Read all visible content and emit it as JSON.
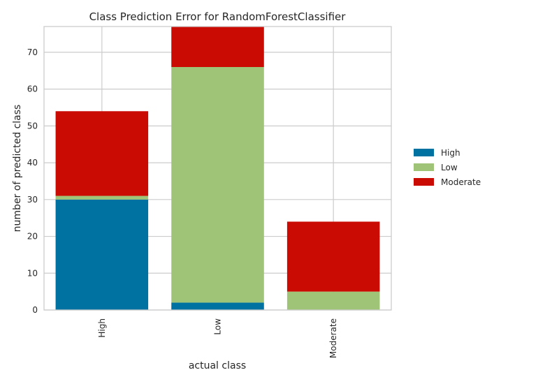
{
  "chart_data": {
    "type": "bar",
    "stacked": true,
    "title": "Class Prediction Error for RandomForestClassifier",
    "xlabel": "actual class",
    "ylabel": "number of predicted class",
    "categories": [
      "High",
      "Low",
      "Moderate"
    ],
    "series": [
      {
        "name": "High",
        "color": "#0072a2",
        "values": [
          30,
          2,
          0
        ]
      },
      {
        "name": "Low",
        "color": "#9fc377",
        "values": [
          1,
          64,
          5
        ]
      },
      {
        "name": "Moderate",
        "color": "#ca0b03",
        "values": [
          23,
          11,
          19
        ]
      }
    ],
    "ylim": [
      0,
      77
    ],
    "yticks": [
      0,
      10,
      20,
      30,
      40,
      50,
      60,
      70
    ],
    "grid": true,
    "legend_position": "right"
  }
}
